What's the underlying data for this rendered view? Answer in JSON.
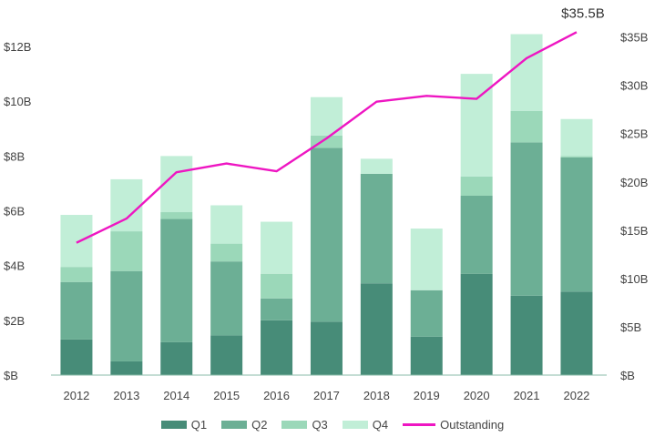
{
  "chart_data": {
    "type": "bar",
    "stacked": true,
    "categories": [
      "2012",
      "2013",
      "2014",
      "2015",
      "2016",
      "2017",
      "2018",
      "2019",
      "2020",
      "2021",
      "2022"
    ],
    "series": [
      {
        "name": "Q1",
        "color": "#478c78",
        "values": [
          1.3,
          0.5,
          1.2,
          1.45,
          2.0,
          1.95,
          3.35,
          1.4,
          3.7,
          2.9,
          3.05
        ]
      },
      {
        "name": "Q2",
        "color": "#6caf95",
        "values": [
          2.1,
          3.3,
          4.5,
          2.7,
          0.8,
          6.35,
          4.0,
          1.7,
          2.85,
          5.6,
          4.9
        ]
      },
      {
        "name": "Q3",
        "color": "#9bd8b9",
        "values": [
          0.55,
          1.45,
          0.25,
          0.65,
          0.9,
          0.45,
          0.0,
          0.0,
          0.7,
          1.15,
          0.05
        ]
      },
      {
        "name": "Q4",
        "color": "#c1eed7",
        "values": [
          1.9,
          1.9,
          2.05,
          1.4,
          1.9,
          1.4,
          0.55,
          2.25,
          3.75,
          2.8,
          1.35
        ]
      }
    ],
    "line_series": {
      "name": "Outstanding",
      "color": "#ee16c2",
      "axis": "right",
      "values": [
        13.7,
        16.2,
        21.0,
        21.9,
        21.1,
        24.5,
        28.3,
        28.9,
        28.6,
        32.8,
        35.5
      ]
    },
    "ylim_left": [
      0,
      12.5
    ],
    "ylim_right": [
      0,
      36
    ],
    "yticks_left": [
      "$B",
      "$2B",
      "$4B",
      "$6B",
      "$8B",
      "$10B",
      "$12B"
    ],
    "yticks_right": [
      "$B",
      "$5B",
      "$10B",
      "$15B",
      "$20B",
      "$25B",
      "$30B",
      "$35B"
    ],
    "annotation": "$35.5B",
    "legend_position": "bottom",
    "grid": false
  }
}
